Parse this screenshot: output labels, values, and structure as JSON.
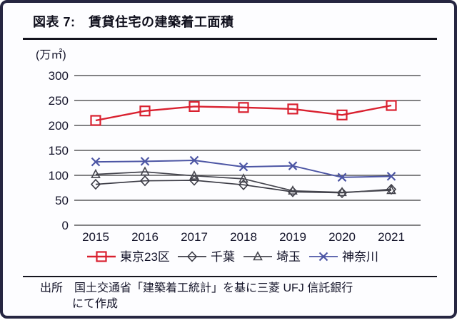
{
  "header": {
    "title": "図表 7:　賃貸住宅の建築着工面積"
  },
  "footer": {
    "source_line1": "出所　国土交通省「建築着工統計」を基に三菱 UFJ 信託銀行",
    "source_line2": "にて作成"
  },
  "colors": {
    "tokyo23": "#d9202f",
    "chiba": "#3c3c46",
    "saitama": "#46464f",
    "kanagawa": "#4c55a4",
    "text": "#14142a",
    "grid": "#3a3a3a",
    "frame_border": "#262641"
  },
  "chart_data": {
    "type": "line",
    "x": [
      2015,
      2016,
      2017,
      2018,
      2019,
      2020,
      2021
    ],
    "series": [
      {
        "name": "東京23区",
        "marker": "square",
        "color": "#d9202f",
        "values": [
          210,
          229,
          238,
          236,
          233,
          221,
          240
        ]
      },
      {
        "name": "千葉",
        "marker": "diamond",
        "color": "#3c3c46",
        "values": [
          82,
          89,
          90,
          81,
          67,
          65,
          72
        ]
      },
      {
        "name": "埼玉",
        "marker": "triangle",
        "color": "#46464f",
        "values": [
          102,
          107,
          99,
          93,
          69,
          66,
          70
        ]
      },
      {
        "name": "神奈川",
        "marker": "x",
        "color": "#4c55a4",
        "values": [
          127,
          128,
          130,
          117,
          119,
          96,
          98
        ]
      }
    ],
    "ylabel": "(万㎡)",
    "ylim": [
      0,
      300
    ],
    "ytick_step": 50,
    "grid": true,
    "legend_position": "bottom"
  }
}
